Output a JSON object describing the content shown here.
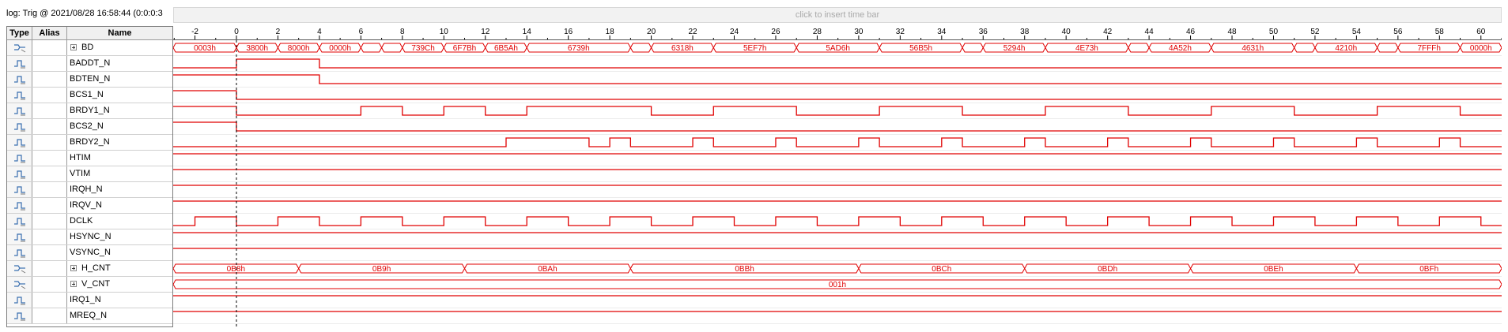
{
  "log_title": "log: Trig @ 2021/08/28 16:58:44 (0:0:0:3",
  "time_bar_hint": "click to insert time bar",
  "columns": {
    "type": "Type",
    "alias": "Alias",
    "name": "Name"
  },
  "time_ticks": [
    "-2",
    "0",
    "2",
    "4",
    "6",
    "8",
    "10",
    "12",
    "14",
    "16",
    "18",
    "20",
    "22",
    "24",
    "26",
    "28",
    "30",
    "32",
    "34",
    "36",
    "38",
    "40",
    "42",
    "44",
    "46",
    "48",
    "50",
    "52",
    "54",
    "56",
    "58",
    "60"
  ],
  "timeline": {
    "t_start": -3.05,
    "t_end": 61.0,
    "trigger_time": 0
  },
  "colors": {
    "waveform": "#e00000",
    "trigger": "#000000"
  },
  "signals": [
    {
      "name": "BD",
      "kind": "bus",
      "expandable": true,
      "icon": "bus-icon",
      "segments": [
        {
          "from": -3.05,
          "to": 0,
          "label": "0003h"
        },
        {
          "from": 0,
          "to": 2,
          "label": "3800h"
        },
        {
          "from": 2,
          "to": 4,
          "label": "8000h"
        },
        {
          "from": 4,
          "to": 6,
          "label": "0000h"
        },
        {
          "from": 6,
          "to": 7,
          "label": ""
        },
        {
          "from": 7,
          "to": 8,
          "label": ""
        },
        {
          "from": 8,
          "to": 10,
          "label": "739Ch"
        },
        {
          "from": 10,
          "to": 12,
          "label": "6F7Bh"
        },
        {
          "from": 12,
          "to": 14,
          "label": "6B5Ah"
        },
        {
          "from": 14,
          "to": 19,
          "label": "6739h"
        },
        {
          "from": 19,
          "to": 20,
          "label": ""
        },
        {
          "from": 20,
          "to": 23,
          "label": "6318h"
        },
        {
          "from": 23,
          "to": 27,
          "label": "5EF7h"
        },
        {
          "from": 27,
          "to": 31,
          "label": "5AD6h"
        },
        {
          "from": 31,
          "to": 35,
          "label": "56B5h"
        },
        {
          "from": 35,
          "to": 36,
          "label": ""
        },
        {
          "from": 36,
          "to": 39,
          "label": "5294h"
        },
        {
          "from": 39,
          "to": 43,
          "label": "4E73h"
        },
        {
          "from": 43,
          "to": 44,
          "label": ""
        },
        {
          "from": 44,
          "to": 47,
          "label": "4A52h"
        },
        {
          "from": 47,
          "to": 51,
          "label": "4631h"
        },
        {
          "from": 51,
          "to": 52,
          "label": ""
        },
        {
          "from": 52,
          "to": 55,
          "label": "4210h"
        },
        {
          "from": 55,
          "to": 56,
          "label": ""
        },
        {
          "from": 56,
          "to": 59,
          "label": "7FFFh"
        },
        {
          "from": 59,
          "to": 61,
          "label": "0000h"
        }
      ]
    },
    {
      "name": "BADDT_N",
      "kind": "bit",
      "icon": "signal-icon",
      "initial": 0,
      "transitions": [
        0,
        4
      ]
    },
    {
      "name": "BDTEN_N",
      "kind": "bit",
      "icon": "signal-icon",
      "initial": 1,
      "transitions": [
        4
      ]
    },
    {
      "name": "BCS1_N",
      "kind": "bit",
      "icon": "signal-icon",
      "initial": 1,
      "transitions": [
        0
      ]
    },
    {
      "name": "BRDY1_N",
      "kind": "bit",
      "icon": "signal-icon",
      "initial": 1,
      "transitions": [
        0,
        6,
        8,
        10,
        12,
        14,
        20,
        23,
        27,
        31,
        35,
        39,
        43,
        47,
        51,
        55,
        59
      ]
    },
    {
      "name": "BCS2_N",
      "kind": "bit",
      "icon": "signal-icon",
      "initial": 1,
      "transitions": [
        0
      ]
    },
    {
      "name": "BRDY2_N",
      "kind": "bit",
      "icon": "signal-icon",
      "initial": 0,
      "transitions": [
        13,
        17,
        18,
        19,
        22,
        23,
        26,
        27,
        30,
        31,
        34,
        35,
        38,
        39,
        42,
        43,
        46,
        47,
        50,
        51,
        54,
        55,
        58,
        59
      ]
    },
    {
      "name": "HTIM",
      "kind": "bit",
      "icon": "signal-icon",
      "initial": 1,
      "transitions": []
    },
    {
      "name": "VTIM",
      "kind": "bit",
      "icon": "signal-icon",
      "initial": 1,
      "transitions": []
    },
    {
      "name": "IRQH_N",
      "kind": "bit",
      "icon": "signal-icon",
      "initial": 1,
      "transitions": []
    },
    {
      "name": "IRQV_N",
      "kind": "bit",
      "icon": "signal-icon",
      "initial": 1,
      "transitions": []
    },
    {
      "name": "DCLK",
      "kind": "clock",
      "icon": "signal-icon",
      "initial": 0,
      "first_edge": -2,
      "half_period": 2
    },
    {
      "name": "HSYNC_N",
      "kind": "bit",
      "icon": "signal-icon",
      "initial": 1,
      "transitions": []
    },
    {
      "name": "VSYNC_N",
      "kind": "bit",
      "icon": "signal-icon",
      "initial": 1,
      "transitions": []
    },
    {
      "name": "H_CNT",
      "kind": "bus",
      "expandable": true,
      "icon": "bus-icon",
      "segments": [
        {
          "from": -3.05,
          "to": 3,
          "label": "0B8h"
        },
        {
          "from": 3,
          "to": 11,
          "label": "0B9h"
        },
        {
          "from": 11,
          "to": 19,
          "label": "0BAh"
        },
        {
          "from": 19,
          "to": 30,
          "label": "0BBh"
        },
        {
          "from": 30,
          "to": 38,
          "label": "0BCh"
        },
        {
          "from": 38,
          "to": 46,
          "label": "0BDh"
        },
        {
          "from": 46,
          "to": 54,
          "label": "0BEh"
        },
        {
          "from": 54,
          "to": 61,
          "label": "0BFh"
        }
      ]
    },
    {
      "name": "V_CNT",
      "kind": "bus",
      "expandable": true,
      "icon": "bus-icon",
      "segments": [
        {
          "from": -3.05,
          "to": 61,
          "label": "001h"
        }
      ]
    },
    {
      "name": "IRQ1_N",
      "kind": "bit",
      "icon": "signal-icon",
      "initial": 1,
      "transitions": []
    },
    {
      "name": "MREQ_N",
      "kind": "bit",
      "icon": "signal-icon",
      "initial": 1,
      "transitions": []
    }
  ]
}
